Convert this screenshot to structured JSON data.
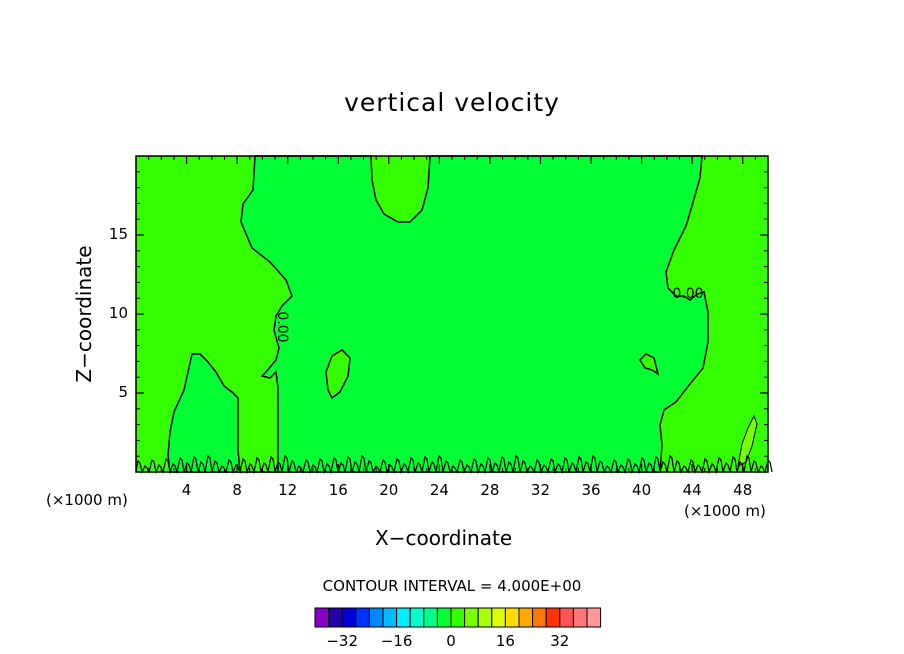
{
  "chart_data": {
    "type": "heatmap",
    "title": "vertical velocity",
    "xlabel": "X−coordinate",
    "ylabel": "Z−coordinate",
    "x_unit": "(×1000 m)",
    "xlim": [
      0,
      50
    ],
    "ylim": [
      0,
      20
    ],
    "x_ticks": [
      4,
      8,
      12,
      16,
      20,
      24,
      28,
      32,
      36,
      40,
      44,
      48
    ],
    "x_tick_labels": [
      "4",
      "8",
      "12",
      "16",
      "20",
      "24",
      "28",
      "32",
      "36",
      "40",
      "44",
      "48"
    ],
    "y_ticks": [
      5,
      10,
      15
    ],
    "y_tick_labels": [
      "5",
      "10",
      "15"
    ],
    "contour_interval": "CONTOUR INTERVAL = 4.000E+00",
    "contour_labels": [
      "0.00",
      "0.00"
    ],
    "regions": [
      {
        "level": "positive",
        "color": "#33ff00",
        "desc": "left side x 0-11"
      },
      {
        "level": "negative",
        "color": "#00ff33",
        "desc": "center"
      },
      {
        "level": "positive",
        "color": "#33ff00",
        "desc": "right side x 42-50"
      },
      {
        "level": "positive",
        "color": "#33ff00",
        "desc": "upper blob x 18-23"
      }
    ],
    "colorbar": {
      "colors": [
        "#8800cc",
        "#2200aa",
        "#0000dd",
        "#0033ff",
        "#0088ff",
        "#00bbff",
        "#00eeff",
        "#00ffcc",
        "#00ff88",
        "#00ff33",
        "#33ff00",
        "#77ff00",
        "#aaff00",
        "#ddff00",
        "#ffdd00",
        "#ffaa00",
        "#ff7700",
        "#ff3300",
        "#ff5555",
        "#ff7777",
        "#ff9999"
      ],
      "tick_values": [
        -32,
        -16,
        0,
        16,
        32
      ],
      "tick_labels": [
        "−32",
        "−16",
        "0",
        "16",
        "32"
      ]
    }
  }
}
